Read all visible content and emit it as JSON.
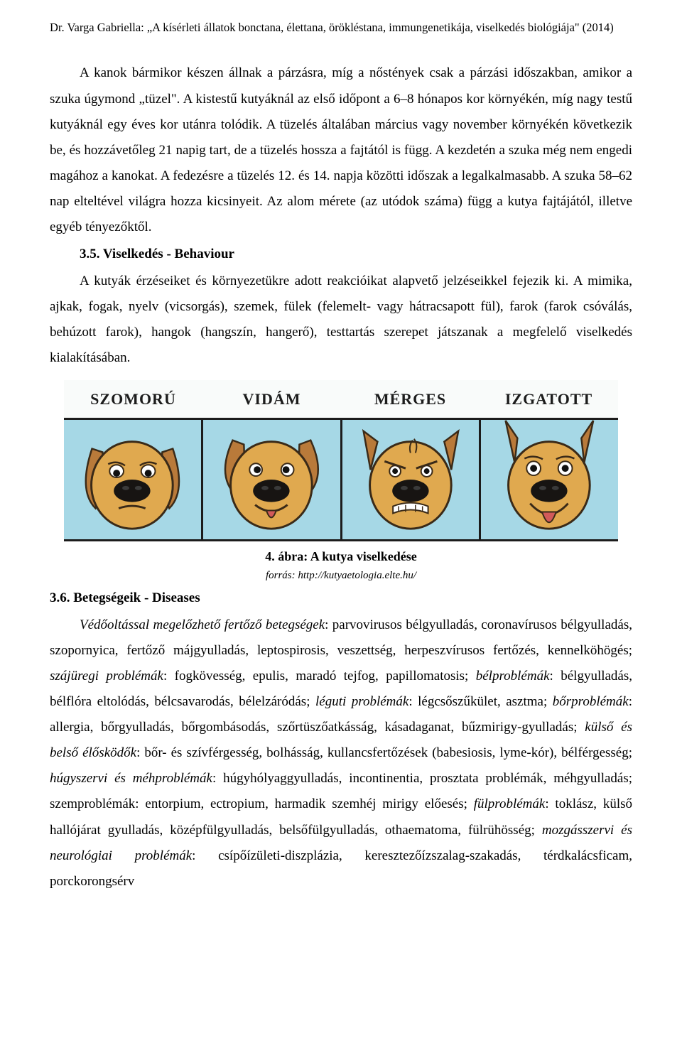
{
  "header": "Dr. Varga Gabriella: „A kísérleti állatok bonctana, élettana, örökléstana, immungenetikája, viselkedés biológiája\" (2014)",
  "para1": "A kanok bármikor készen állnak a párzásra, míg a nőstények csak a párzási időszakban, amikor a szuka úgymond „tüzel\". A kistestű kutyáknál az első időpont a 6–8 hónapos kor környékén, míg nagy testű kutyáknál egy éves kor utánra tolódik. A tüzelés általában március vagy november környékén következik be, és hozzávetőleg 21 napig tart, de a tüzelés hossza a fajtától is függ. A kezdetén a szuka még nem engedi magához a kanokat. A fedezésre a tüzelés 12. és 14. napja közötti időszak a legalkalmasabb. A szuka 58–62 nap elteltével világra hozza kicsinyeit. Az alom mérete (az utódok száma) függ a kutya fajtájától, illetve egyéb tényezőktől.",
  "section35": "3.5. Viselkedés - Behaviour",
  "para2": "A kutyák érzéseiket és környezetükre adott reakcióikat alapvető jelzéseikkel fejezik ki. A mimika, ajkak, fogak, nyelv (vicsorgás), szemek, fülek (felemelt- vagy hátracsapott fül), farok (farok csóválás, behúzott farok), hangok (hangszín, hangerő), testtartás szerepet játszanak a megfelelő viselkedés kialakításában.",
  "cartoon": {
    "labels": [
      "SZOMORÚ",
      "VIDÁM",
      "MÉRGES",
      "IZGATOTT"
    ],
    "bg_color": "#a6d8e6",
    "border_color": "#1c1c1c",
    "dog_fill": "#e0a94f",
    "dog_stroke": "#3a2a18",
    "ear_fill": "#b97a3a",
    "nose_fill": "#171412",
    "tongue_fill": "#d25a5a",
    "eye_white": "#ffffff",
    "eye_black": "#111111"
  },
  "caption_title": "4. ábra: A kutya viselkedése",
  "caption_source": "forrás: http://kutyaetologia.elte.hu/",
  "section36": "3.6. Betegségeik - Diseases",
  "para3_parts": {
    "lead": "Védőoltással megelőzhető fertőző betegségek",
    "t0": ": parvovirusos bélgyulladás, coronavírusos bélgyulladás, szopornyica, fertőző májgyulladás, leptospirosis, veszettség, herpeszvírusos fertőzés, kennelköhögés; ",
    "i1": "szájüregi problémák",
    "t1": ": fogkövesség, epulis, maradó tejfog, papillomatosis; ",
    "i2": "bélproblémák",
    "t2": ": bélgyulladás, bélflóra eltolódás, bélcsavarodás, bélelzáródás; ",
    "i3": "léguti problémák",
    "t3": ": légcsőszűkület, asztma; ",
    "i4": "bőrproblémák",
    "t4": ": allergia, bőrgyulladás, bőrgombásodás, szőrtüszőatkásság, kásadaganat, bűzmirigy-gyulladás; ",
    "i5": "külső és belső élősködők",
    "t5": ": bőr- és szívférgesség, bolhásság, kullancsfertőzések (babesiosis, lyme-kór), bélférgesség; ",
    "i6": "húgyszervi és méhproblémák",
    "t6": ": húgyhólyaggyulladás, incontinentia, prosztata problémák, méhgyulladás; szemproblémák: entorpium, ectropium, harmadik szemhéj mirigy előesés; ",
    "i7": "fülproblémák",
    "t7": ": toklász, külső hallójárat gyulladás, középfülgyulladás, belsőfülgyulladás, othaematoma, fülrühösség; ",
    "i8": "mozgásszervi és neurológiai problémák",
    "t8": ": csípőízületi-diszplázia, keresztezőízszalag-szakadás, térdkalácsficam, porckorongsérv"
  }
}
